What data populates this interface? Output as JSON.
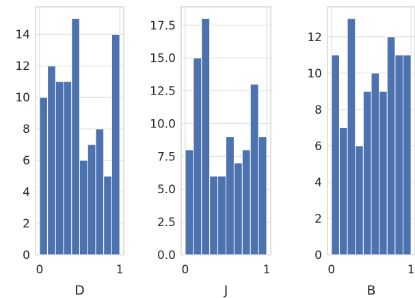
{
  "chart_data": [
    {
      "type": "bar",
      "xlabel": "D",
      "bin_edges": [
        0,
        0.1,
        0.2,
        0.3,
        0.4,
        0.5,
        0.6,
        0.7,
        0.8,
        0.9,
        1.0
      ],
      "values": [
        10,
        12,
        11,
        11,
        15,
        6,
        7,
        8,
        5,
        14
      ],
      "xlim": [
        -0.05,
        1.05
      ],
      "ylim": [
        0,
        15.75
      ],
      "xticks": [
        0,
        1
      ],
      "yticks": [
        0,
        2,
        4,
        6,
        8,
        10,
        12,
        14
      ],
      "ytick_labels": [
        "0",
        "2",
        "4",
        "6",
        "8",
        "10",
        "12",
        "14"
      ],
      "xtick_labels": [
        "0",
        "1"
      ],
      "grid": true
    },
    {
      "type": "bar",
      "xlabel": "J",
      "bin_edges": [
        0,
        0.1,
        0.2,
        0.3,
        0.4,
        0.5,
        0.6,
        0.7,
        0.8,
        0.9,
        1.0
      ],
      "values": [
        8,
        15,
        18,
        6,
        6,
        9,
        7,
        8,
        13,
        9
      ],
      "xlim": [
        -0.05,
        1.05
      ],
      "ylim": [
        0,
        18.9
      ],
      "xticks": [
        0,
        1
      ],
      "yticks": [
        0,
        2.5,
        5,
        7.5,
        10,
        12.5,
        15,
        17.5
      ],
      "ytick_labels": [
        "0.0",
        "2.5",
        "5.0",
        "7.5",
        "10.0",
        "12.5",
        "15.0",
        "17.5"
      ],
      "xtick_labels": [
        "0",
        "1"
      ],
      "grid": true
    },
    {
      "type": "bar",
      "xlabel": "B",
      "bin_edges": [
        0,
        0.1,
        0.2,
        0.3,
        0.4,
        0.5,
        0.6,
        0.7,
        0.8,
        0.9,
        1.0
      ],
      "values": [
        11,
        7,
        13,
        6,
        9,
        10,
        9,
        12,
        11,
        11
      ],
      "xlim": [
        -0.05,
        1.05
      ],
      "ylim": [
        0,
        13.65
      ],
      "xticks": [
        0,
        1
      ],
      "yticks": [
        0,
        2,
        4,
        6,
        8,
        10,
        12
      ],
      "ytick_labels": [
        "0",
        "2",
        "4",
        "6",
        "8",
        "10",
        "12"
      ],
      "xtick_labels": [
        "0",
        "1"
      ],
      "grid": true
    }
  ]
}
